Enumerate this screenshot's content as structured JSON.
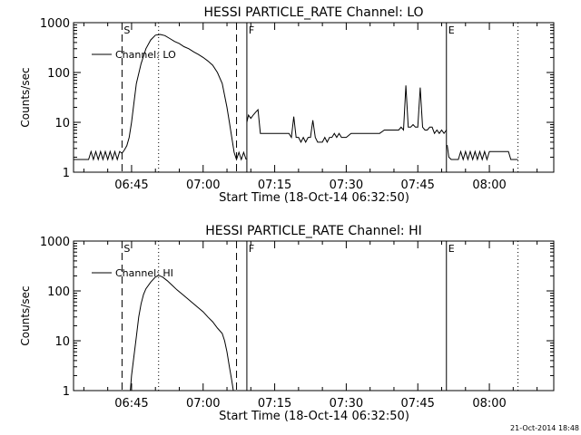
{
  "footer": {
    "timestamp": "21-Oct-2014 18:48"
  },
  "chart_data": [
    {
      "type": "line",
      "title": "HESSI PARTICLE_RATE Channel: LO",
      "xlabel": "Start Time (18-Oct-14 06:32:50)",
      "ylabel": "Counts/sec",
      "yscale": "log",
      "ylim": [
        1,
        1000
      ],
      "xlim": [
        "06:32:50",
        "08:13:30"
      ],
      "x_ticks": [
        "06:45",
        "07:00",
        "07:15",
        "07:30",
        "07:45",
        "08:00"
      ],
      "y_ticks": [
        "1",
        "10",
        "100",
        "1000"
      ],
      "legend": {
        "label": "Channel: LO",
        "placement": "top-left"
      },
      "markers": [
        {
          "label": "S",
          "time": "06:43:00",
          "style": "dashed"
        },
        {
          "label": "",
          "time": "06:50:40",
          "style": "dotted"
        },
        {
          "label": "",
          "time": "07:07:00",
          "style": "dashed"
        },
        {
          "label": "F",
          "time": "07:09:10",
          "style": "solid"
        },
        {
          "label": "E",
          "time": "07:51:00",
          "style": "solid"
        },
        {
          "label": "",
          "time": "08:06:00",
          "style": "dotted"
        }
      ],
      "series": [
        {
          "name": "Channel: LO",
          "segments": [
            {
              "x": [
                "06:32:50",
                "06:36:00",
                "06:36:30",
                "06:37:00",
                "06:37:30",
                "06:38:00",
                "06:38:30",
                "06:39:00",
                "06:39:30",
                "06:40:00",
                "06:40:30",
                "06:41:00",
                "06:41:30",
                "06:42:00",
                "06:42:30",
                "06:43:00",
                "06:43:30",
                "06:44:00",
                "06:44:30",
                "06:45:00",
                "06:45:30",
                "06:46:00",
                "06:47:00",
                "06:48:00",
                "06:49:00",
                "06:50:00",
                "06:51:00",
                "06:52:00",
                "06:53:00",
                "06:54:00",
                "06:55:00",
                "06:56:00",
                "06:57:00",
                "06:58:00",
                "06:59:00",
                "07:00:00",
                "07:01:00",
                "07:02:00",
                "07:03:00",
                "07:04:00",
                "07:05:00",
                "07:05:30",
                "07:06:00",
                "07:06:30",
                "07:07:00",
                "07:07:30",
                "07:08:00",
                "07:08:30",
                "07:09:00"
              ],
              "y": [
                1.8,
                1.8,
                2.6,
                1.8,
                2.6,
                1.8,
                2.6,
                1.8,
                2.6,
                1.8,
                2.6,
                1.8,
                2.6,
                1.8,
                2.6,
                2.4,
                2.8,
                3.4,
                5,
                10,
                25,
                60,
                150,
                300,
                450,
                560,
                580,
                550,
                480,
                420,
                380,
                330,
                300,
                260,
                230,
                200,
                170,
                140,
                100,
                60,
                20,
                10,
                5,
                2.5,
                1.8,
                2.5,
                1.8,
                2.5,
                1.8
              ]
            },
            {
              "x": [
                "07:09:10",
                "07:09:30",
                "07:10:00",
                "07:10:30",
                "07:11:00",
                "07:11:30",
                "07:12:00",
                "07:12:30",
                "07:13:00",
                "07:14:00",
                "07:15:00",
                "07:16:00",
                "07:17:00",
                "07:18:00",
                "07:18:30",
                "07:19:00",
                "07:19:30",
                "07:20:00",
                "07:20:30",
                "07:21:00",
                "07:21:30",
                "07:22:00",
                "07:22:30",
                "07:23:00",
                "07:23:30",
                "07:24:00",
                "07:25:00",
                "07:25:30",
                "07:26:00",
                "07:26:30",
                "07:27:00",
                "07:27:30",
                "07:28:00",
                "07:28:30",
                "07:29:00",
                "07:30:00",
                "07:31:00",
                "07:32:00",
                "07:33:00",
                "07:34:00",
                "07:35:00",
                "07:36:00",
                "07:37:00",
                "07:38:00",
                "07:39:00",
                "07:40:00",
                "07:41:00",
                "07:41:30",
                "07:42:00",
                "07:42:30",
                "07:43:00",
                "07:43:30",
                "07:44:00",
                "07:44:30",
                "07:45:00",
                "07:45:30",
                "07:46:00",
                "07:46:30",
                "07:47:00",
                "07:47:30",
                "07:48:00",
                "07:48:30",
                "07:49:00",
                "07:49:30",
                "07:50:00",
                "07:50:30",
                "07:51:00"
              ],
              "y": [
                10,
                14,
                12,
                14,
                16,
                18,
                6,
                6,
                6,
                6,
                6,
                6,
                6,
                6,
                5,
                13,
                5,
                5,
                4,
                5,
                4,
                5,
                5,
                11,
                5,
                4,
                4,
                5,
                4,
                5,
                5,
                6,
                5,
                6,
                5,
                5,
                6,
                6,
                6,
                6,
                6,
                6,
                6,
                7,
                7,
                7,
                7,
                8,
                7,
                55,
                8,
                8,
                9,
                8,
                8,
                50,
                8,
                7,
                7,
                8,
                8,
                6,
                7,
                6,
                7,
                6,
                7
              ]
            },
            {
              "x": [
                "07:51:10",
                "07:51:30",
                "07:52:00",
                "07:53:00",
                "07:53:30",
                "07:54:00",
                "07:54:30",
                "07:55:00",
                "07:55:30",
                "07:56:00",
                "07:56:30",
                "07:57:00",
                "07:57:30",
                "07:58:00",
                "07:58:30",
                "07:59:00",
                "07:59:30",
                "08:00:00",
                "08:01:00",
                "08:02:00",
                "08:03:00",
                "08:04:00",
                "08:04:30",
                "08:05:00",
                "08:06:00"
              ],
              "y": [
                3.5,
                2,
                1.8,
                1.8,
                1.8,
                2.6,
                1.8,
                2.6,
                1.8,
                2.6,
                1.8,
                2.6,
                1.8,
                2.6,
                1.8,
                2.6,
                1.8,
                2.6,
                2.6,
                2.6,
                2.6,
                2.6,
                1.8,
                1.8,
                1.8
              ]
            }
          ]
        }
      ]
    },
    {
      "type": "line",
      "title": "HESSI PARTICLE_RATE Channel: HI",
      "xlabel": "Start Time (18-Oct-14 06:32:50)",
      "ylabel": "Counts/sec",
      "yscale": "log",
      "ylim": [
        1,
        1000
      ],
      "xlim": [
        "06:32:50",
        "08:13:30"
      ],
      "x_ticks": [
        "06:45",
        "07:00",
        "07:15",
        "07:30",
        "07:45",
        "08:00"
      ],
      "y_ticks": [
        "1",
        "10",
        "100",
        "1000"
      ],
      "legend": {
        "label": "Channel: HI",
        "placement": "top-left"
      },
      "markers": [
        {
          "label": "S",
          "time": "06:43:00",
          "style": "dashed"
        },
        {
          "label": "",
          "time": "06:50:40",
          "style": "dotted"
        },
        {
          "label": "",
          "time": "07:07:00",
          "style": "dashed"
        },
        {
          "label": "F",
          "time": "07:09:10",
          "style": "solid"
        },
        {
          "label": "E",
          "time": "07:51:00",
          "style": "solid"
        },
        {
          "label": "",
          "time": "08:06:00",
          "style": "dotted"
        }
      ],
      "series": [
        {
          "name": "Channel: HI",
          "segments": [
            {
              "x": [
                "06:44:45",
                "06:45:00",
                "06:45:30",
                "06:46:00",
                "06:46:30",
                "06:47:00",
                "06:47:30",
                "06:48:00",
                "06:49:00",
                "06:50:00",
                "06:50:40",
                "06:51:30",
                "06:52:30",
                "06:53:30",
                "06:54:30",
                "06:56:00",
                "06:58:00",
                "07:00:00",
                "07:01:00",
                "07:02:00",
                "07:03:00",
                "07:04:00",
                "07:04:30",
                "07:05:00",
                "07:05:30",
                "07:06:00",
                "07:06:20"
              ],
              "y": [
                1,
                2,
                5,
                12,
                30,
                55,
                85,
                110,
                150,
                190,
                205,
                190,
                160,
                130,
                105,
                80,
                55,
                38,
                30,
                24,
                18,
                14,
                10,
                6,
                3,
                1.6,
                1
              ]
            }
          ]
        }
      ]
    }
  ]
}
